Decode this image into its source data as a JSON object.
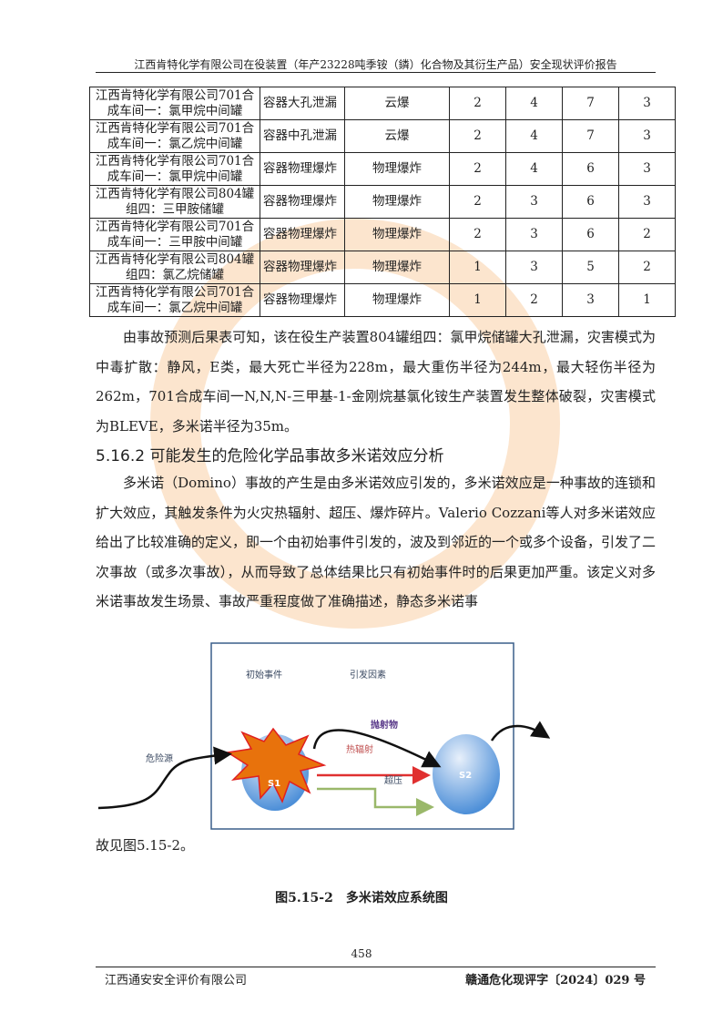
{
  "header": {
    "title": "江西肯特化学有限公司在役装置（年产23228吨季铵（鏻）化合物及其衍生产品）安全现状评价报告"
  },
  "table": {
    "rows": [
      [
        "江西肯特化学有限公司701合成车间一：氯甲烷中间罐",
        "容器大孔泄漏",
        "云爆",
        "2",
        "4",
        "7",
        "3"
      ],
      [
        "江西肯特化学有限公司701合成车间一：氯乙烷中间罐",
        "容器中孔泄漏",
        "云爆",
        "2",
        "4",
        "7",
        "3"
      ],
      [
        "江西肯特化学有限公司701合成车间一：氯甲烷中间罐",
        "容器物理爆炸",
        "物理爆炸",
        "2",
        "4",
        "6",
        "3"
      ],
      [
        "江西肯特化学有限公司804罐组四：三甲胺储罐",
        "容器物理爆炸",
        "物理爆炸",
        "2",
        "3",
        "6",
        "3"
      ],
      [
        "江西肯特化学有限公司701合成车间一：三甲胺中间罐",
        "容器物理爆炸",
        "物理爆炸",
        "2",
        "3",
        "6",
        "2"
      ],
      [
        "江西肯特化学有限公司804罐组四：氯乙烷储罐",
        "容器物理爆炸",
        "物理爆炸",
        "1",
        "3",
        "5",
        "2"
      ],
      [
        "江西肯特化学有限公司701合成车间一：氯乙烷中间罐",
        "容器物理爆炸",
        "物理爆炸",
        "1",
        "2",
        "3",
        "1"
      ]
    ]
  },
  "para1": "由事故预测后果表可知，该在役生产装置804罐组四：氯甲烷储罐大孔泄漏，灾害模式为中毒扩散：静风，E类，最大死亡半径为228m，最大重伤半径为244m，最大轻伤半径为262m，701合成车间一N,N,N-三甲基-1-金刚烷基氯化铵生产装置发生整体破裂，灾害模式为BLEVE，多米诺半径为35m。",
  "heading": "5.16.2 可能发生的危险化学品事故多米诺效应分析",
  "para2": "多米诺（Domino）事故的产生是由多米诺效应引发的，多米诺效应是一种事故的连锁和扩大效应，其触发条件为火灾热辐射、超压、爆炸碎片。Valerio Cozzani等人对多米诺效应给出了比较准确的定义，即一个由初始事件引发的，波及到邻近的一个或多个设备，引发了二次事故（或多次事故），从而导致了总体结果比只有初始事件时的后果更加严重。该定义对多米诺事故发生场景、事故严重程度做了准确描述，静态多米诺事",
  "para3": "故见图5.15-2。",
  "diagram": {
    "initial_event": "初始事件",
    "trigger_factors": "引发因素",
    "projectile": "抛射物",
    "heat_radiation": "热辐射",
    "overpressure": "超压",
    "hazard_source": "危险源",
    "s1": "S1",
    "s2": "S2"
  },
  "caption": "图5.15-2　多米诺效应系统图",
  "footer": {
    "page": "458",
    "company": "江西通安安全评价有限公司",
    "doc_no": "赣通危化现评字〔2024〕029 号"
  }
}
